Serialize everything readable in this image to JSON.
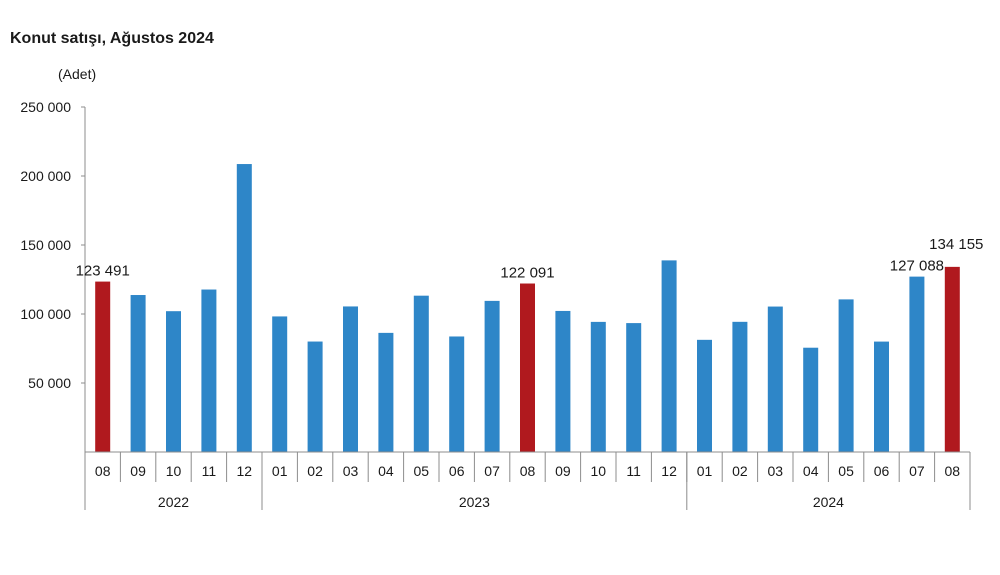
{
  "chart_data": {
    "type": "bar",
    "title": "Konut satışı, Ağustos 2024",
    "ylabel": "(Adet)",
    "ylim": [
      0,
      250000
    ],
    "yticks": [
      "50 000",
      "100 000",
      "150 000",
      "200 000",
      "250 000"
    ],
    "ytick_values": [
      50000,
      100000,
      150000,
      200000,
      250000
    ],
    "grid": false,
    "categories": [
      "08",
      "09",
      "10",
      "11",
      "12",
      "01",
      "02",
      "03",
      "04",
      "05",
      "06",
      "07",
      "08",
      "09",
      "10",
      "11",
      "12",
      "01",
      "02",
      "03",
      "04",
      "05",
      "06",
      "07",
      "08"
    ],
    "years": [
      {
        "label": "2022",
        "count": 5
      },
      {
        "label": "2023",
        "count": 12
      },
      {
        "label": "2024",
        "count": 8
      }
    ],
    "values": [
      123491,
      113753,
      102040,
      117730,
      208663,
      98242,
      80043,
      105476,
      86322,
      113276,
      83710,
      109507,
      122091,
      102216,
      94286,
      93409,
      138854,
      81278,
      94329,
      105394,
      75569,
      110588,
      80008,
      127088,
      134155
    ],
    "highlighted": [
      0,
      12,
      24
    ],
    "data_labels": [
      {
        "index": 0,
        "text": "123 491"
      },
      {
        "index": 12,
        "text": "122 091"
      },
      {
        "index": 23,
        "text": "127 088"
      },
      {
        "index": 24,
        "text": "134 155"
      }
    ],
    "colors": {
      "bar": "#2e86c8",
      "highlight": "#b0191e",
      "axis": "#8c8c8c"
    }
  }
}
